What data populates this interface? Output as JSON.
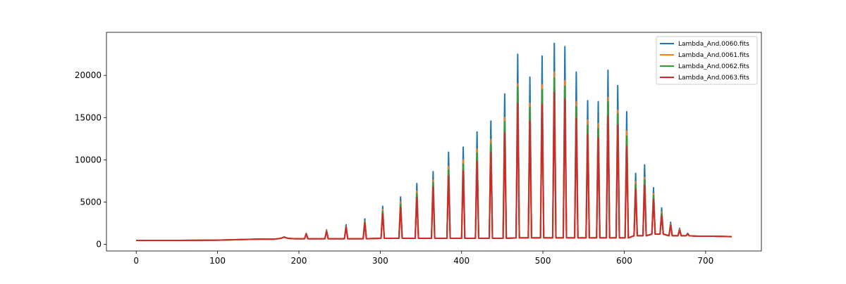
{
  "chart_data": {
    "type": "line",
    "x": [
      0,
      50,
      100,
      130,
      155,
      170,
      178,
      182,
      186,
      195,
      207,
      209,
      211,
      232,
      234,
      236,
      256,
      258,
      260,
      279,
      281,
      283,
      301,
      303,
      305,
      323,
      325,
      327,
      343,
      345,
      347,
      363,
      365,
      367,
      382,
      384,
      386,
      400,
      402,
      404,
      417,
      419,
      421,
      434,
      436,
      438,
      451,
      453,
      455,
      467,
      469,
      471,
      482,
      484,
      486,
      497,
      499,
      501,
      512,
      514,
      516,
      525,
      527,
      529,
      539,
      541,
      543,
      553,
      555,
      557,
      566,
      568,
      570,
      578,
      580,
      582,
      590,
      592,
      594,
      601,
      603,
      605,
      612,
      614,
      616,
      623,
      625,
      627,
      634,
      636,
      638,
      644,
      646,
      648,
      655,
      657,
      659,
      666,
      668,
      670,
      676,
      678,
      680,
      690,
      710,
      732
    ],
    "series": [
      {
        "name": "Lambda_And.0060.fits",
        "color": "#1f77b4",
        "values": [
          450,
          450,
          480,
          550,
          620,
          600,
          700,
          850,
          700,
          650,
          650,
          1300,
          650,
          650,
          1700,
          650,
          650,
          2300,
          650,
          650,
          3000,
          650,
          700,
          4500,
          700,
          700,
          5600,
          700,
          700,
          7200,
          700,
          700,
          8600,
          700,
          700,
          10900,
          700,
          700,
          11500,
          700,
          700,
          13300,
          700,
          700,
          14600,
          700,
          700,
          17800,
          700,
          750,
          22500,
          750,
          750,
          19800,
          750,
          750,
          22300,
          750,
          750,
          23800,
          750,
          750,
          23400,
          750,
          750,
          20400,
          750,
          750,
          17000,
          750,
          750,
          16900,
          750,
          750,
          20600,
          750,
          750,
          18800,
          750,
          750,
          15700,
          750,
          1000,
          8400,
          1000,
          1000,
          9400,
          1000,
          1200,
          6700,
          1200,
          1200,
          4300,
          1200,
          1000,
          2600,
          1000,
          1000,
          1900,
          1000,
          1000,
          1300,
          1000,
          950,
          950,
          900
        ]
      },
      {
        "name": "Lambda_And.0061.fits",
        "color": "#ff7f0e",
        "values": [
          450,
          450,
          480,
          550,
          620,
          600,
          700,
          850,
          700,
          650,
          650,
          1250,
          650,
          650,
          1600,
          650,
          650,
          2100,
          650,
          650,
          2700,
          650,
          700,
          4100,
          700,
          700,
          5000,
          700,
          700,
          6300,
          700,
          700,
          7600,
          700,
          700,
          9200,
          700,
          700,
          10000,
          700,
          700,
          11300,
          700,
          700,
          12400,
          700,
          700,
          15000,
          700,
          750,
          19000,
          750,
          750,
          16700,
          750,
          750,
          18900,
          750,
          750,
          20400,
          750,
          750,
          19400,
          750,
          750,
          16900,
          750,
          750,
          14700,
          750,
          750,
          14300,
          750,
          750,
          17400,
          750,
          750,
          15900,
          750,
          750,
          13400,
          750,
          1000,
          7400,
          1000,
          1000,
          7900,
          1000,
          1200,
          6000,
          1200,
          1200,
          3800,
          1200,
          1000,
          2400,
          1000,
          1000,
          1800,
          1000,
          1000,
          1250,
          1000,
          950,
          950,
          900
        ]
      },
      {
        "name": "Lambda_And.0062.fits",
        "color": "#2ca02c",
        "values": [
          450,
          450,
          480,
          550,
          620,
          600,
          700,
          850,
          700,
          650,
          650,
          1200,
          650,
          650,
          1550,
          650,
          650,
          2050,
          650,
          650,
          2600,
          650,
          700,
          3900,
          700,
          700,
          4800,
          700,
          700,
          6000,
          700,
          700,
          7300,
          700,
          700,
          8800,
          700,
          700,
          9500,
          700,
          700,
          10800,
          700,
          700,
          11900,
          700,
          700,
          14500,
          700,
          750,
          18600,
          750,
          750,
          16200,
          750,
          750,
          18300,
          750,
          750,
          19700,
          750,
          750,
          18700,
          750,
          750,
          16300,
          750,
          750,
          14100,
          750,
          750,
          13700,
          750,
          750,
          16900,
          750,
          750,
          15400,
          750,
          750,
          12800,
          750,
          1000,
          7100,
          1000,
          1000,
          7600,
          1000,
          1200,
          5800,
          1200,
          1200,
          3600,
          1200,
          1000,
          2300,
          1000,
          1000,
          1700,
          1000,
          1000,
          1250,
          1000,
          950,
          950,
          900
        ]
      },
      {
        "name": "Lambda_And.0063.fits",
        "color": "#d62728",
        "values": [
          450,
          450,
          480,
          550,
          620,
          600,
          700,
          850,
          700,
          650,
          650,
          1200,
          650,
          650,
          1500,
          650,
          650,
          2000,
          650,
          650,
          2500,
          650,
          700,
          3600,
          700,
          700,
          4400,
          700,
          700,
          5500,
          700,
          700,
          6800,
          700,
          700,
          8100,
          700,
          700,
          8700,
          700,
          700,
          9800,
          700,
          700,
          10900,
          700,
          700,
          13200,
          700,
          750,
          16700,
          750,
          750,
          14600,
          750,
          750,
          16600,
          750,
          750,
          18000,
          750,
          750,
          17200,
          750,
          750,
          14900,
          750,
          750,
          13000,
          750,
          750,
          12600,
          750,
          750,
          15200,
          750,
          750,
          14100,
          750,
          750,
          11600,
          750,
          1000,
          6500,
          1000,
          1000,
          7000,
          1000,
          1200,
          5300,
          1200,
          1200,
          3400,
          1200,
          1000,
          2200,
          1000,
          1000,
          1600,
          1000,
          1000,
          1200,
          1000,
          950,
          950,
          900
        ]
      }
    ],
    "xlim": [
      -36.6,
      768.6
    ],
    "ylim": [
      -800,
      25100
    ],
    "xticks": [
      0,
      100,
      200,
      300,
      400,
      500,
      600,
      700
    ],
    "yticks": [
      0,
      5000,
      10000,
      15000,
      20000
    ],
    "legend": "upper right"
  }
}
